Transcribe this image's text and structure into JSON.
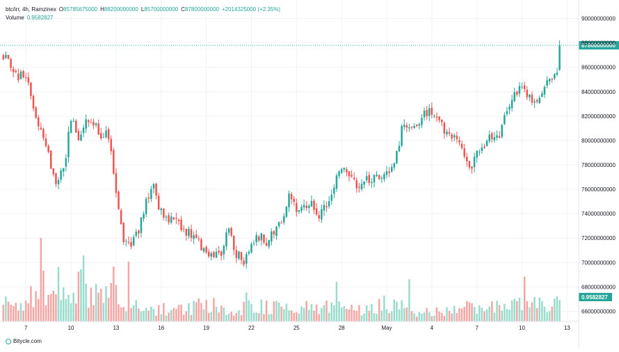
{
  "header": {
    "symbol": "btc/irr, 4h, Ramzinex",
    "open_label": "O",
    "open_value": "85785675000",
    "high_label": "H",
    "high_value": "88200000000",
    "low_label": "L",
    "low_value": "85700000000",
    "close_label": "C",
    "close_value": "87800000000",
    "change": "+2014325000 (+2.35%)",
    "volume_label": "Volume",
    "volume_value": "0.9582827"
  },
  "watermark": "Bitycle.com",
  "colors": {
    "up": "#26a69a",
    "down": "#ef5350",
    "up_volume": "#99dccc",
    "down_volume": "#f3a6a4",
    "grid": "#f0f3fa",
    "axis_text": "#131722",
    "last_price_line": "#26a69a"
  },
  "chart_data": {
    "type": "candlestick",
    "interval": "4h",
    "y_axis": {
      "ticks": [
        "90000000000",
        "88000000000",
        "86000000000",
        "84000000000",
        "82000000000",
        "80000000000",
        "78000000000",
        "76000000000",
        "74000000000",
        "72000000000",
        "70000000000",
        "68000000000",
        "66000000000"
      ],
      "ylim": [
        65400000000,
        90600000000
      ],
      "position": "right"
    },
    "x_axis": {
      "ticks": [
        "7",
        "10",
        "13",
        "16",
        "19",
        "22",
        "25",
        "28",
        "May",
        "4",
        "7",
        "10",
        "13"
      ],
      "tick_bar_index": [
        9,
        27,
        45,
        63,
        81,
        99,
        117,
        135,
        153,
        171,
        189,
        207,
        225
      ]
    },
    "price_label": "87800000000",
    "volume_label": "0.9582827",
    "volume_pane_max": 9.5,
    "close_path": [
      [
        0,
        87100000000
      ],
      [
        3,
        86200000000
      ],
      [
        6,
        85300000000
      ],
      [
        9,
        85400000000
      ],
      [
        12,
        82600000000
      ],
      [
        15,
        80500000000
      ],
      [
        18,
        78800000000
      ],
      [
        21,
        76600000000
      ],
      [
        24,
        77600000000
      ],
      [
        27,
        81700000000
      ],
      [
        30,
        80100000000
      ],
      [
        33,
        81700000000
      ],
      [
        36,
        81400000000
      ],
      [
        39,
        80600000000
      ],
      [
        42,
        80500000000
      ],
      [
        45,
        75500000000
      ],
      [
        48,
        71600000000
      ],
      [
        51,
        71300000000
      ],
      [
        54,
        72800000000
      ],
      [
        57,
        74800000000
      ],
      [
        60,
        76100000000
      ],
      [
        62,
        74300000000
      ],
      [
        65,
        73600000000
      ],
      [
        69,
        73900000000
      ],
      [
        72,
        72600000000
      ],
      [
        75,
        72300000000
      ],
      [
        78,
        71600000000
      ],
      [
        81,
        70600000000
      ],
      [
        84,
        70300000000
      ],
      [
        87,
        70800000000
      ],
      [
        90,
        72900000000
      ],
      [
        93,
        70700000000
      ],
      [
        96,
        70000000000
      ],
      [
        99,
        71400000000
      ],
      [
        102,
        72200000000
      ],
      [
        105,
        71400000000
      ],
      [
        108,
        72600000000
      ],
      [
        111,
        73600000000
      ],
      [
        114,
        75300000000
      ],
      [
        117,
        74400000000
      ],
      [
        120,
        74600000000
      ],
      [
        123,
        74700000000
      ],
      [
        126,
        73800000000
      ],
      [
        129,
        74800000000
      ],
      [
        132,
        76500000000
      ],
      [
        135,
        77900000000
      ],
      [
        138,
        77300000000
      ],
      [
        141,
        76500000000
      ],
      [
        144,
        76700000000
      ],
      [
        147,
        76800000000
      ],
      [
        150,
        76900000000
      ],
      [
        153,
        77300000000
      ],
      [
        156,
        77800000000
      ],
      [
        159,
        80800000000
      ],
      [
        162,
        81000000000
      ],
      [
        165,
        81400000000
      ],
      [
        168,
        82200000000
      ],
      [
        171,
        82300000000
      ],
      [
        174,
        81800000000
      ],
      [
        177,
        80400000000
      ],
      [
        180,
        80200000000
      ],
      [
        183,
        79700000000
      ],
      [
        186,
        77700000000
      ],
      [
        189,
        78900000000
      ],
      [
        192,
        79700000000
      ],
      [
        195,
        80400000000
      ],
      [
        198,
        80500000000
      ],
      [
        201,
        82600000000
      ],
      [
        204,
        83600000000
      ],
      [
        207,
        84500000000
      ],
      [
        210,
        83400000000
      ],
      [
        213,
        83400000000
      ],
      [
        216,
        84700000000
      ],
      [
        219,
        85200000000
      ],
      [
        221,
        85800000000
      ],
      [
        222,
        87800000000
      ]
    ],
    "volume_path": [
      [
        0,
        3
      ],
      [
        6,
        2.6
      ],
      [
        12,
        3.4
      ],
      [
        16,
        5.2
      ],
      [
        21,
        4
      ],
      [
        27,
        2.5
      ],
      [
        31,
        6
      ],
      [
        36,
        3.2
      ],
      [
        44,
        5.6
      ],
      [
        48,
        3
      ],
      [
        54,
        2
      ],
      [
        62,
        1.8
      ],
      [
        72,
        1.5
      ],
      [
        80,
        2.6
      ],
      [
        90,
        1.6
      ],
      [
        100,
        2.4
      ],
      [
        110,
        2.2
      ],
      [
        119,
        1.8
      ],
      [
        133,
        2.4
      ],
      [
        145,
        1.6
      ],
      [
        153,
        2.5
      ],
      [
        165,
        1.4
      ],
      [
        180,
        1.7
      ],
      [
        190,
        2.2
      ],
      [
        205,
        2.4
      ],
      [
        222,
        2.3
      ]
    ],
    "volume_spikes": [
      [
        15,
        9.5
      ],
      [
        22,
        6.2
      ],
      [
        32,
        7.5
      ],
      [
        50,
        6.8
      ],
      [
        162,
        4.8
      ],
      [
        208,
        5.1
      ],
      [
        133,
        4.5
      ],
      [
        97,
        3.3
      ]
    ],
    "last_bar": {
      "open": 85785675000,
      "high": 88200000000,
      "low": 85700000000,
      "close": 87800000000,
      "volume": 0.9582827
    }
  }
}
